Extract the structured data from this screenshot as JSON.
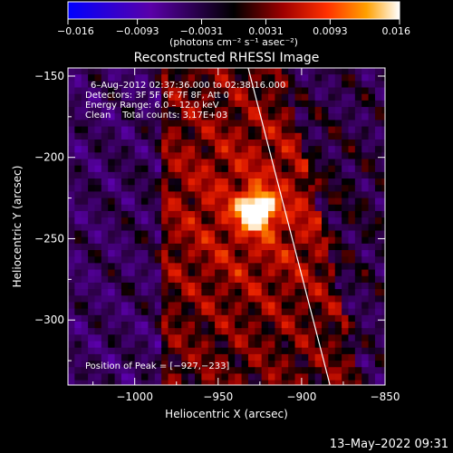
{
  "chart_data": {
    "type": "heatmap",
    "title": "Reconstructed RHESSI Image",
    "xlabel": "Heliocentric X (arcsec)",
    "ylabel": "Heliocentric Y (arcsec)",
    "xlim": [
      -1040,
      -850
    ],
    "ylim": [
      -340,
      -145
    ],
    "x_ticks": [
      -1000,
      -950,
      -900,
      -850
    ],
    "x_tick_labels": [
      "−1000",
      "−950",
      "−900",
      "−850"
    ],
    "y_ticks": [
      -150,
      -200,
      -250,
      -300
    ],
    "y_tick_labels": [
      "−150",
      "−200",
      "−250",
      "−300"
    ],
    "colorbar": {
      "min": -0.016,
      "max": 0.016,
      "ticks": [
        -0.016,
        -0.0093,
        -0.0031,
        0.0031,
        0.0093,
        0.016
      ],
      "tick_labels": [
        "−0.016",
        "−0.0093",
        "−0.0031",
        "0.0031",
        "0.0093",
        "0.016"
      ],
      "units_label": "(photons cm⁻² s⁻¹ asec⁻²)",
      "colors": [
        "#0000ff",
        "#4b0082",
        "#000000",
        "#8b0000",
        "#ff4500",
        "#ffa500",
        "#ffffff"
      ]
    },
    "peak": {
      "x": -927,
      "y": -233
    },
    "limb_line": [
      {
        "x": -932,
        "y": -145
      },
      {
        "x": -883,
        "y": -340
      }
    ],
    "annotations": [
      "6–Aug–2012 02:37:36.000 to 02:38:16.000",
      "Detectors: 3F 5F 6F 7F 8F, Att 0",
      "Energy Range: 6.0 – 12.0 keV",
      "Clean    Total counts: 3.17E+03"
    ],
    "peak_label": "Position of Peak = [−927,−233]",
    "grid": false,
    "legend": "none"
  },
  "footer": {
    "timestamp": "13–May–2022 09:31"
  }
}
